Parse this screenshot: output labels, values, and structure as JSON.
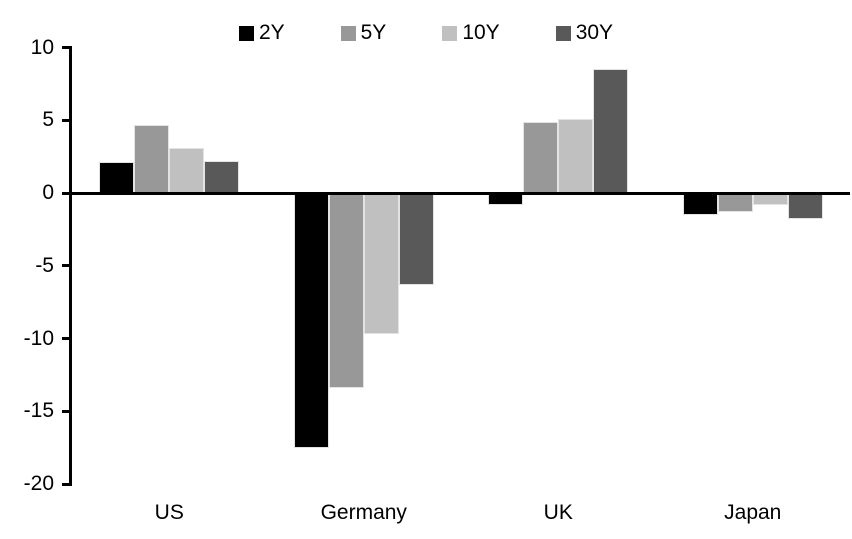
{
  "chart_data": {
    "type": "bar",
    "title": "",
    "categories": [
      "US",
      "Germany",
      "UK",
      "Japan"
    ],
    "series": [
      {
        "name": "2Y",
        "color": "#000000",
        "values": [
          2.1,
          -17.5,
          -0.8,
          -1.5
        ]
      },
      {
        "name": "5Y",
        "color": "#989898",
        "values": [
          4.7,
          -13.4,
          4.9,
          -1.3
        ]
      },
      {
        "name": "10Y",
        "color": "#c0c0c0",
        "values": [
          3.1,
          -9.7,
          5.1,
          -0.8
        ]
      },
      {
        "name": "30Y",
        "color": "#595959",
        "values": [
          2.2,
          -6.3,
          8.5,
          -1.8
        ]
      }
    ],
    "y_ticks": [
      10,
      5,
      0,
      -5,
      -10,
      -15,
      -20
    ],
    "ylim": [
      -20,
      10
    ],
    "xlabel": "",
    "ylabel": "",
    "grid": false,
    "legend_position": "top",
    "axis_color": "#000000",
    "bar_outline_color": "#e3e3e3"
  }
}
